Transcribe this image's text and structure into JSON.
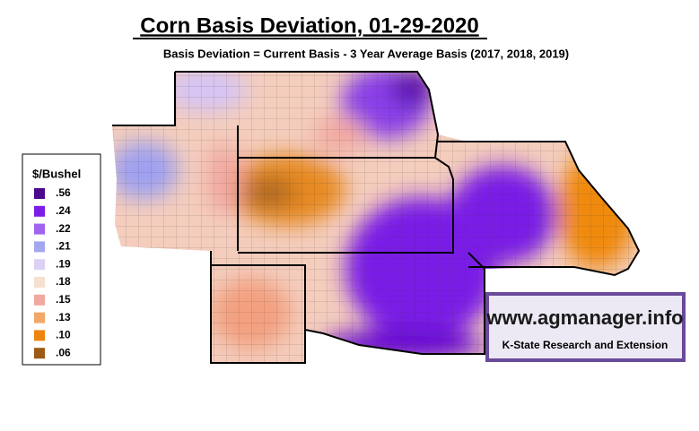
{
  "title": "Corn Basis Deviation, 01-29-2020",
  "subtitle": "Basis Deviation = Current Basis - 3 Year Average Basis (2017, 2018, 2019)",
  "legend": {
    "title": "$/Bushel",
    "items": [
      {
        "label": ".56",
        "color": "#4b0a8c"
      },
      {
        "label": ".24",
        "color": "#7a1ee6"
      },
      {
        "label": ".22",
        "color": "#a064ee"
      },
      {
        "label": ".21",
        "color": "#a3a8ee"
      },
      {
        "label": ".19",
        "color": "#dcd0f6"
      },
      {
        "label": ".18",
        "color": "#f7e0cf"
      },
      {
        "label": ".15",
        "color": "#f2a8a0"
      },
      {
        "label": ".13",
        "color": "#f2a868"
      },
      {
        "label": ".10",
        "color": "#ee8410"
      },
      {
        "label": ".06",
        "color": "#9c5a14"
      }
    ]
  },
  "logo": {
    "url": "www.agmanager.info",
    "org": "K-State Research and Extension"
  }
}
